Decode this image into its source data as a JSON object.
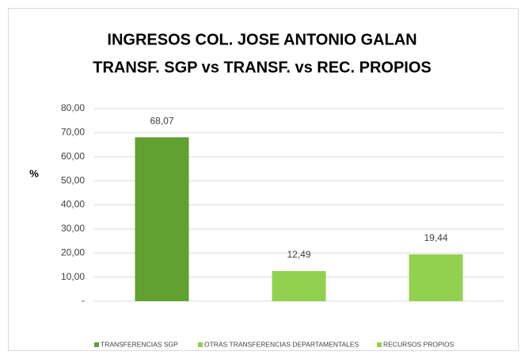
{
  "chart_data": {
    "type": "bar",
    "title": [
      "INGRESOS COL. JOSE ANTONIO GALAN",
      "TRANSF. SGP vs TRANSF. vs REC. PROPIOS"
    ],
    "y_label": "%",
    "categories": [
      null,
      null,
      null
    ],
    "series": [
      {
        "name": "TRANSFERENCIAS SGP",
        "color": "#62a032",
        "values": [
          68.07,
          null,
          null
        ],
        "value_labels": [
          "68,07",
          null,
          null
        ]
      },
      {
        "name": "OTRAS TRANSFERENCIAS DEPARTAMENTALES",
        "color": "#92d050",
        "values": [
          null,
          12.49,
          null
        ],
        "value_labels": [
          null,
          "12,49",
          null
        ]
      },
      {
        "name": "RECURSOS PROPIOS",
        "color": "#92d050",
        "values": [
          null,
          null,
          19.44
        ],
        "value_labels": [
          null,
          null,
          "19,44"
        ]
      }
    ],
    "ylim": [
      0,
      80
    ],
    "yticks": [
      {
        "value": 0,
        "label": "-"
      },
      {
        "value": 10,
        "label": "10,00"
      },
      {
        "value": 20,
        "label": "20,00"
      },
      {
        "value": 30,
        "label": "30,00"
      },
      {
        "value": 40,
        "label": "40,00"
      },
      {
        "value": 50,
        "label": "50,00"
      },
      {
        "value": 60,
        "label": "60,00"
      },
      {
        "value": 70,
        "label": "70,00"
      },
      {
        "value": 80,
        "label": "80,00"
      }
    ],
    "grid": true,
    "legend": "bottom"
  }
}
